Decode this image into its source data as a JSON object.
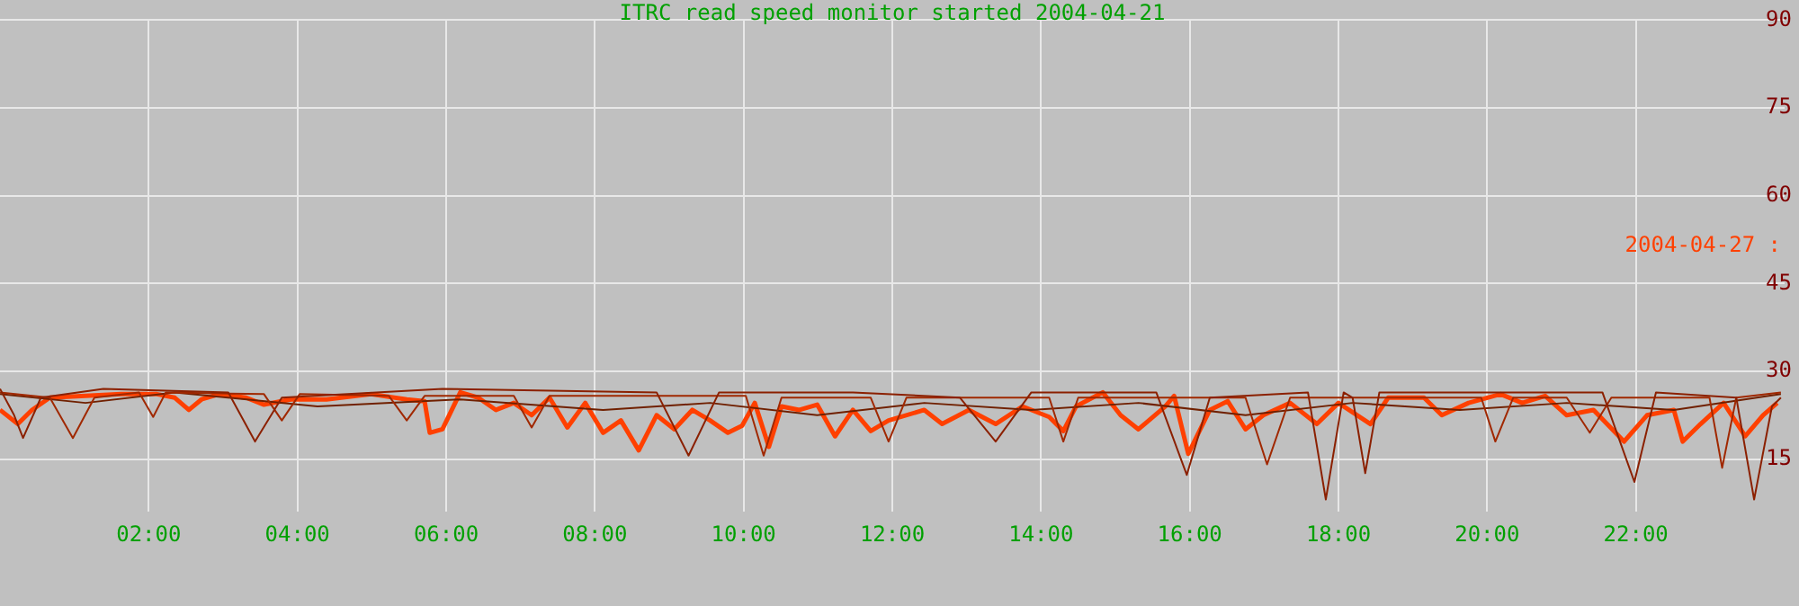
{
  "chart_data": {
    "type": "line",
    "title": "ITRC read speed monitor started 2004-04-21",
    "xlim": [
      0,
      24
    ],
    "ylim": [
      6,
      90
    ],
    "xticks": [
      {
        "value": 2,
        "label": "02:00"
      },
      {
        "value": 4,
        "label": "04:00"
      },
      {
        "value": 6,
        "label": "06:00"
      },
      {
        "value": 8,
        "label": "08:00"
      },
      {
        "value": 10,
        "label": "10:00"
      },
      {
        "value": 12,
        "label": "12:00"
      },
      {
        "value": 14,
        "label": "14:00"
      },
      {
        "value": 16,
        "label": "16:00"
      },
      {
        "value": 18,
        "label": "18:00"
      },
      {
        "value": 20,
        "label": "20:00"
      },
      {
        "value": 22,
        "label": "22:00"
      }
    ],
    "yticks": [
      15,
      30,
      45,
      60,
      75,
      90
    ],
    "grid": true,
    "legend": "right",
    "marker": "none",
    "line_style": "solid",
    "series": [
      {
        "color": "#8b2000",
        "x": [
          0,
          0.19,
          0.31,
          0.55,
          1.39,
          3.07,
          3.43,
          3.79,
          5.95,
          8.83,
          9.26,
          9.67,
          11.47,
          12.91,
          13.39,
          13.87,
          15.55,
          15.96,
          16.27,
          17.59,
          17.83,
          18.07,
          18.19,
          18.36,
          18.55,
          21.55,
          21.98,
          22.27,
          23.35,
          23.59,
          23.83,
          23.95
        ],
        "values": [
          27,
          22.5,
          18.6,
          25.5,
          27,
          26.4,
          18,
          25.5,
          27,
          26.4,
          15.6,
          26.4,
          26.4,
          25.5,
          18,
          26.4,
          26.4,
          12.3,
          25.5,
          26.4,
          8.1,
          26.4,
          25.5,
          12.6,
          26.4,
          26.4,
          11.1,
          26.4,
          25.5,
          8.1,
          24,
          25.5
        ]
      },
      {
        "color": "#a02800",
        "x": [
          0,
          0.67,
          0.98,
          1.27,
          1.87,
          2.06,
          2.23,
          3.55,
          3.79,
          4.03,
          5.23,
          5.47,
          5.71,
          6.91,
          7.15,
          7.39,
          10.03,
          10.27,
          10.51,
          11.71,
          11.95,
          12.19,
          14.11,
          14.3,
          14.5,
          16.75,
          17.04,
          17.35,
          19.92,
          20.11,
          20.35,
          21.07,
          21.38,
          21.67,
          22.99,
          23.16,
          23.35,
          23.95
        ],
        "values": [
          26.4,
          25.5,
          18.6,
          25.5,
          26.4,
          22.2,
          26.4,
          26.1,
          21.6,
          26.1,
          25.8,
          21.6,
          25.8,
          25.8,
          20.4,
          25.8,
          25.8,
          15.6,
          25.5,
          25.5,
          18,
          25.5,
          25.5,
          18,
          25.5,
          25.5,
          14.1,
          25.5,
          25.5,
          18,
          25.5,
          25.5,
          19.5,
          25.5,
          25.5,
          13.5,
          25.5,
          26.4
        ]
      },
      {
        "color": "#702000",
        "x": [
          0,
          1.15,
          2.35,
          4.27,
          6.19,
          8.11,
          9.55,
          10.99,
          12.43,
          13.87,
          15.31,
          16.75,
          18.19,
          19.63,
          21.07,
          22.51,
          23.95
        ],
        "values": [
          26.1,
          24.6,
          26.4,
          24,
          25.2,
          23.4,
          24.6,
          22.5,
          24.6,
          23.4,
          24.6,
          22.5,
          24.6,
          23.4,
          24.6,
          23.4,
          26.1
        ]
      },
      {
        "name": "2004-04-27 :",
        "color": "#ff4000",
        "x": [
          0,
          0.24,
          0.43,
          0.67,
          1.15,
          1.63,
          2.11,
          2.35,
          2.54,
          2.71,
          2.95,
          3.31,
          3.55,
          3.91,
          4.39,
          4.99,
          5.47,
          5.71,
          5.78,
          5.95,
          6.19,
          6.43,
          6.67,
          6.91,
          7.15,
          7.39,
          7.63,
          7.87,
          8.11,
          8.35,
          8.59,
          8.83,
          9.07,
          9.31,
          9.55,
          9.79,
          9.98,
          10.15,
          10.34,
          10.51,
          10.75,
          10.99,
          11.23,
          11.47,
          11.71,
          11.95,
          12.43,
          12.67,
          13.03,
          13.39,
          13.75,
          14.11,
          14.3,
          14.47,
          14.83,
          15.07,
          15.31,
          15.67,
          15.79,
          15.98,
          16.27,
          16.51,
          16.75,
          16.99,
          17.35,
          17.71,
          18.0,
          18.43,
          18.67,
          19.15,
          19.39,
          19.75,
          20.18,
          20.47,
          20.78,
          21.07,
          21.43,
          21.84,
          22.15,
          22.51,
          22.63,
          22.87,
          23.18,
          23.47,
          23.71,
          23.9
        ],
        "values": [
          23.4,
          21.0,
          23.4,
          25.5,
          25.8,
          26.1,
          26.1,
          25.5,
          23.4,
          25.2,
          26.1,
          25.5,
          24.3,
          25.2,
          25.2,
          26.1,
          25.2,
          24.9,
          19.5,
          20.1,
          26.4,
          25.5,
          23.4,
          24.6,
          22.5,
          25.5,
          20.4,
          24.6,
          19.5,
          21.6,
          16.5,
          22.5,
          20.1,
          23.4,
          21.6,
          19.5,
          20.7,
          24.6,
          17.1,
          24.0,
          23.4,
          24.3,
          18.9,
          23.4,
          19.8,
          21.6,
          23.4,
          21.0,
          23.4,
          21.0,
          24.0,
          22.2,
          19.8,
          24.0,
          26.4,
          22.5,
          20.1,
          24.0,
          25.8,
          15.9,
          23.4,
          24.9,
          20.1,
          22.5,
          24.6,
          21.0,
          24.6,
          21.0,
          25.5,
          25.5,
          22.5,
          24.6,
          26.1,
          24.6,
          25.8,
          22.5,
          23.4,
          18.0,
          22.5,
          23.4,
          18.0,
          21.0,
          24.6,
          18.9,
          22.5,
          24.6
        ]
      }
    ]
  }
}
